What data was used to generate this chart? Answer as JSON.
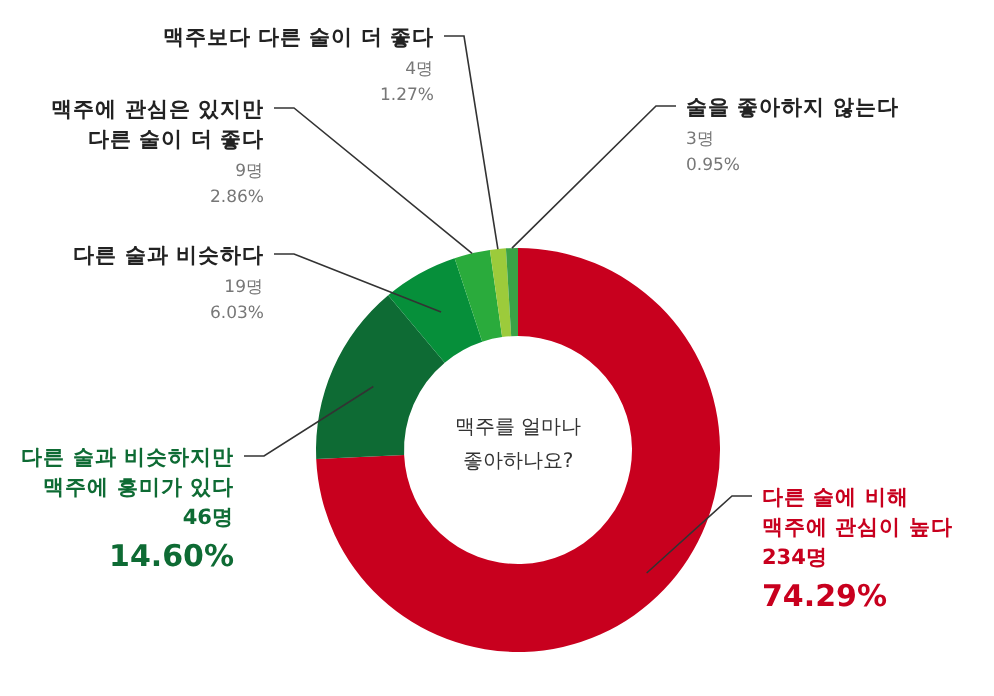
{
  "chart_data": {
    "type": "donut",
    "title": "맥주를 얼마나\n좋아하나요?",
    "categories": [
      "다른 술에 비해\n맥주에 관심이 높다",
      "다른 술과 비슷하지만\n맥주에 흥미가 있다",
      "다른 술과 비슷하다",
      "맥주에 관심은 있지만\n다른 술이 더 좋다",
      "맥주보다 다른 술이 더 좋다",
      "술을 좋아하지 않는다"
    ],
    "values": [
      234,
      46,
      19,
      9,
      4,
      3
    ],
    "value_labels": [
      "234명\n74.29%",
      "46명\n14.60%",
      "19명\n6.03%",
      "9명\n2.86%",
      "4명\n1.27%",
      "3명\n0.95%"
    ],
    "colors": [
      "#c8001e",
      "#0e6b34",
      "#068f3a",
      "#2aab3c",
      "#9ccb3b",
      "#3aa246"
    ]
  }
}
